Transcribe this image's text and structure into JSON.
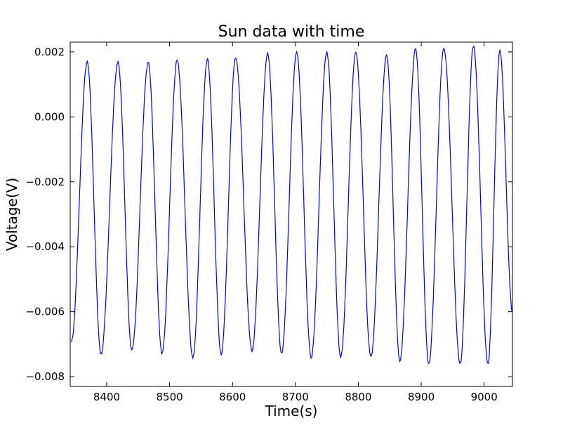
{
  "chart_data": {
    "type": "line",
    "title": "Sun data with time",
    "xlabel": "Time(s)",
    "ylabel": "Voltage(V)",
    "xlim": [
      8342,
      9045
    ],
    "ylim": [
      -0.0083,
      0.0023
    ],
    "xticks": [
      8400,
      8500,
      8600,
      8700,
      8800,
      8900,
      9000
    ],
    "xtick_labels": [
      "8400",
      "8500",
      "8600",
      "8700",
      "8800",
      "8900",
      "9000"
    ],
    "yticks": [
      0.002,
      0.0,
      -0.002,
      -0.004,
      -0.006,
      -0.008
    ],
    "ytick_labels": [
      "0.002",
      "0.000",
      "−0.002",
      "−0.004",
      "−0.006",
      "−0.008"
    ],
    "grid": false,
    "series": [
      {
        "color": "#0000ff",
        "x_start": 8342,
        "x_end": 9045,
        "peaks": [
          [
            8369,
            0.00168
          ],
          [
            8418,
            0.00167
          ],
          [
            8466,
            0.00167
          ],
          [
            8512,
            0.00173
          ],
          [
            8560,
            0.00178
          ],
          [
            8605,
            0.00182
          ],
          [
            8656,
            0.00194
          ],
          [
            8702,
            0.00198
          ],
          [
            8750,
            0.00198
          ],
          [
            8796,
            0.00196
          ],
          [
            8845,
            0.0019
          ],
          [
            8891,
            0.00208
          ],
          [
            8936,
            0.00212
          ],
          [
            8983,
            0.0022
          ],
          [
            9025,
            0.00202
          ]
        ],
        "troughs": [
          [
            8344,
            -0.0069
          ],
          [
            8391,
            -0.0073
          ],
          [
            8440,
            -0.0072
          ],
          [
            8488,
            -0.0073
          ],
          [
            8537,
            -0.0074
          ],
          [
            8582,
            -0.0073
          ],
          [
            8631,
            -0.0072
          ],
          [
            8678,
            -0.0073
          ],
          [
            8725,
            -0.0074
          ],
          [
            8772,
            -0.0074
          ],
          [
            8820,
            -0.0074
          ],
          [
            8866,
            -0.0075
          ],
          [
            8912,
            -0.0076
          ],
          [
            8962,
            -0.0076
          ],
          [
            9006,
            -0.0076
          ]
        ],
        "end_value": -0.006
      }
    ]
  }
}
